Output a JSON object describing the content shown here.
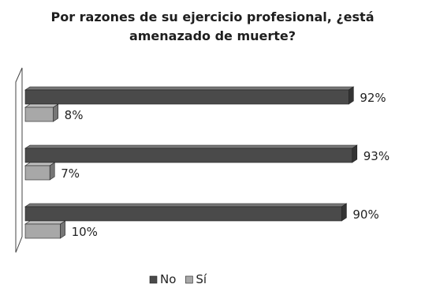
{
  "chart_data": {
    "type": "bar",
    "orientation": "horizontal",
    "three_d": true,
    "title_lines": [
      "Por razones de su ejercicio profesional, ¿está",
      "amenazado de muerte?"
    ],
    "categories": [
      "",
      "",
      ""
    ],
    "series": [
      {
        "name": "No",
        "values": [
          92,
          93,
          90
        ],
        "labels": [
          "92%",
          "93%",
          "90%"
        ],
        "color": "#4a4a4a"
      },
      {
        "name": "Sí",
        "values": [
          8,
          7,
          10
        ],
        "labels": [
          "8%",
          "7%",
          "10%"
        ],
        "color": "#a8a8a8"
      }
    ],
    "xlim": [
      0,
      100
    ],
    "unit": "%",
    "legend": {
      "position": "bottom",
      "items": [
        "No",
        "Sí"
      ]
    },
    "grid": false
  }
}
